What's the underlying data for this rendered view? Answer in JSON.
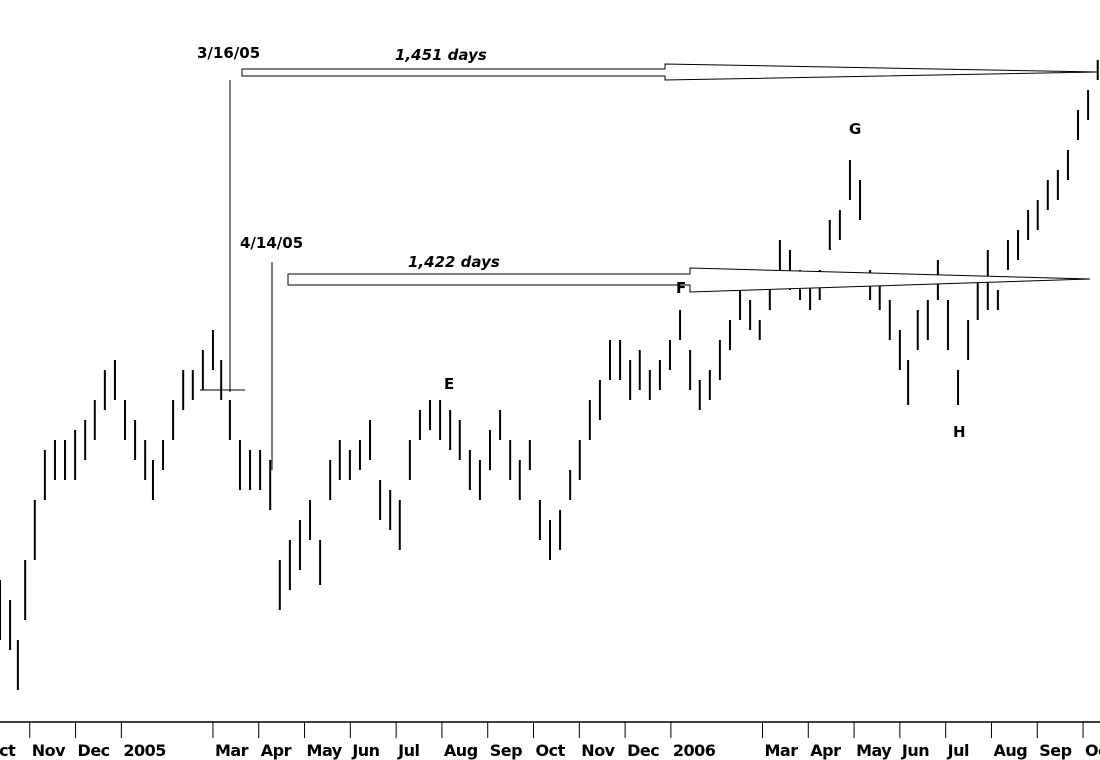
{
  "chart_data": {
    "type": "hilo",
    "color": "#000000",
    "annotations": [
      "3/16/05",
      "1,451 days",
      "4/14/05",
      "1,422 days",
      "E",
      "F",
      "G",
      "H"
    ],
    "x": [
      0.35,
      0.57,
      0.74,
      0.9,
      1.11,
      1.33,
      1.55,
      1.77,
      1.99,
      2.21,
      2.42,
      2.64,
      2.86,
      3.08,
      3.3,
      3.52,
      3.69,
      3.91,
      4.13,
      4.35,
      4.56,
      4.78,
      5.0,
      5.18,
      5.37,
      5.59,
      5.81,
      6.03,
      6.25,
      6.46,
      6.68,
      6.9,
      7.12,
      7.34,
      7.56,
      7.77,
      7.99,
      8.21,
      8.43,
      8.65,
      8.87,
      9.08,
      9.3,
      9.52,
      9.74,
      9.96,
      10.18,
      10.39,
      10.61,
      10.83,
      11.05,
      11.27,
      11.49,
      11.7,
      11.92,
      12.14,
      12.36,
      12.58,
      12.8,
      13.01,
      13.23,
      13.45,
      13.67,
      13.89,
      14.11,
      14.32,
      14.54,
      14.76,
      14.98,
      15.2,
      15.42,
      15.63,
      15.85,
      16.07,
      16.29,
      16.51,
      16.73,
      16.94,
      17.16,
      17.38,
      17.6,
      17.82,
      18.04,
      18.25,
      18.47,
      18.69,
      18.91,
      19.13,
      19.35,
      19.56,
      19.78,
      20.0,
      20.18,
      20.39,
      20.61,
      20.83,
      21.05,
      21.27,
      21.49,
      21.7,
      21.92,
      22.14,
      22.36,
      22.58,
      22.8,
      23.01,
      23.23,
      23.45,
      23.67,
      23.89,
      24.11,
      24.32
    ],
    "high": [
      140,
      120,
      80,
      160,
      220,
      270,
      280,
      280,
      290,
      300,
      320,
      350,
      360,
      320,
      300,
      280,
      260,
      280,
      320,
      350,
      350,
      370,
      390,
      360,
      320,
      280,
      270,
      270,
      260,
      160,
      180,
      200,
      220,
      180,
      260,
      280,
      270,
      280,
      300,
      240,
      230,
      220,
      280,
      310,
      320,
      320,
      310,
      300,
      270,
      260,
      290,
      310,
      280,
      260,
      280,
      220,
      200,
      210,
      250,
      280,
      320,
      340,
      380,
      380,
      360,
      370,
      350,
      360,
      380,
      410,
      370,
      340,
      350,
      380,
      400,
      430,
      420,
      400,
      440,
      480,
      470,
      450,
      440,
      450,
      500,
      510,
      560,
      540,
      450,
      440,
      420,
      390,
      360,
      410,
      420,
      460,
      420,
      350,
      400,
      440,
      470,
      430,
      480,
      490,
      510,
      520,
      540,
      550,
      570,
      610,
      630,
      660
    ],
    "low": [
      80,
      70,
      30,
      100,
      160,
      220,
      240,
      240,
      240,
      260,
      280,
      310,
      320,
      280,
      260,
      240,
      220,
      250,
      280,
      310,
      320,
      330,
      350,
      320,
      280,
      230,
      230,
      230,
      210,
      110,
      130,
      150,
      180,
      135,
      220,
      240,
      240,
      250,
      260,
      200,
      190,
      170,
      240,
      280,
      290,
      280,
      270,
      260,
      230,
      220,
      250,
      280,
      240,
      220,
      250,
      180,
      160,
      170,
      220,
      240,
      280,
      300,
      340,
      340,
      320,
      330,
      320,
      330,
      350,
      380,
      330,
      310,
      320,
      340,
      370,
      400,
      390,
      380,
      410,
      450,
      430,
      420,
      410,
      420,
      470,
      480,
      520,
      500,
      420,
      410,
      380,
      350,
      315,
      370,
      380,
      420,
      370,
      315,
      360,
      400,
      410,
      410,
      450,
      460,
      480,
      490,
      510,
      520,
      540,
      580,
      600,
      640
    ],
    "xlim": [
      0.35,
      24.37
    ],
    "ylim": [
      0,
      700
    ],
    "xticks": [
      {
        "value": 0,
        "label": "Oct"
      },
      {
        "value": 1,
        "label": "Nov"
      },
      {
        "value": 2,
        "label": "Dec"
      },
      {
        "value": 3,
        "label": "2005"
      },
      {
        "value": 5,
        "label": "Mar"
      },
      {
        "value": 6,
        "label": "Apr"
      },
      {
        "value": 7,
        "label": "May"
      },
      {
        "value": 8,
        "label": "Jun"
      },
      {
        "value": 9,
        "label": "Jul"
      },
      {
        "value": 10,
        "label": "Aug"
      },
      {
        "value": 11,
        "label": "Sep"
      },
      {
        "value": 12,
        "label": "Oct"
      },
      {
        "value": 13,
        "label": "Nov"
      },
      {
        "value": 14,
        "label": "Dec"
      },
      {
        "value": 15,
        "label": "2006"
      },
      {
        "value": 17,
        "label": "Mar"
      },
      {
        "value": 18,
        "label": "Apr"
      },
      {
        "value": 19,
        "label": "May"
      },
      {
        "value": 20,
        "label": "Jun"
      },
      {
        "value": 21,
        "label": "Jul"
      },
      {
        "value": 22,
        "label": "Aug"
      },
      {
        "value": 23,
        "label": "Sep"
      },
      {
        "value": 24,
        "label": "Oct"
      }
    ]
  }
}
